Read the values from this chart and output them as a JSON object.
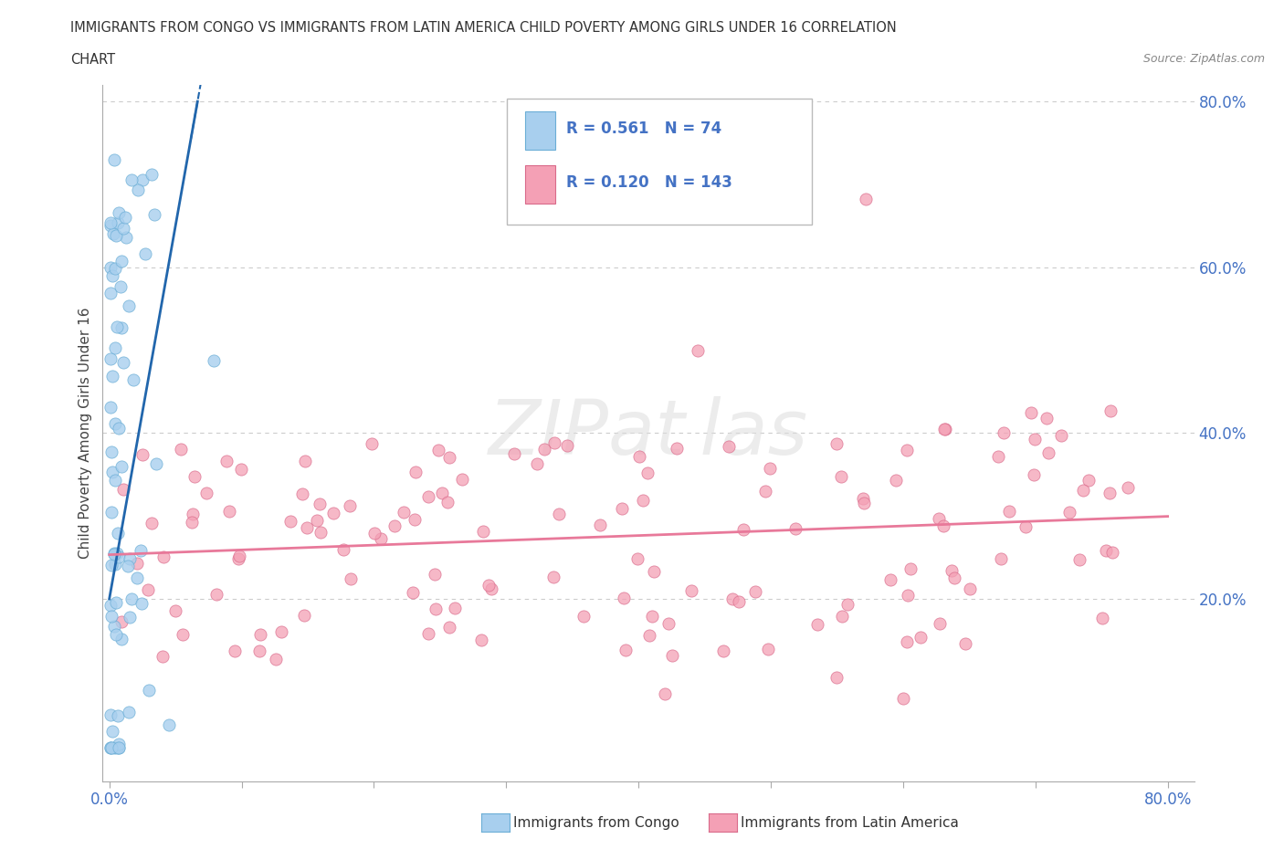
{
  "title_line1": "IMMIGRANTS FROM CONGO VS IMMIGRANTS FROM LATIN AMERICA CHILD POVERTY AMONG GIRLS UNDER 16 CORRELATION",
  "title_line2": "CHART",
  "source": "Source: ZipAtlas.com",
  "ylabel": "Child Poverty Among Girls Under 16",
  "xlim": [
    -0.005,
    0.82
  ],
  "ylim": [
    -0.02,
    0.82
  ],
  "xtick_positions": [
    0.0,
    0.1,
    0.2,
    0.3,
    0.4,
    0.5,
    0.6,
    0.7,
    0.8
  ],
  "xticklabels": [
    "0.0%",
    "",
    "",
    "",
    "",
    "",
    "",
    "",
    "80.0%"
  ],
  "ytick_right": [
    0.2,
    0.4,
    0.6,
    0.8
  ],
  "ytick_right_labels": [
    "20.0%",
    "40.0%",
    "60.0%",
    "80.0%"
  ],
  "congo_fill": "#A8CFEE",
  "congo_edge": "#6BAED6",
  "latin_fill": "#F4A0B5",
  "latin_edge": "#D96A8A",
  "congo_line_color": "#2166AC",
  "latin_line_color": "#E8799A",
  "tick_color": "#4472C4",
  "R_congo": 0.561,
  "N_congo": 74,
  "R_latin": 0.12,
  "N_latin": 143,
  "legend_text_color": "#4472C4",
  "legend_label_color": "#222222",
  "grid_color": "#CCCCCC",
  "watermark_color": "#DDDDDD"
}
